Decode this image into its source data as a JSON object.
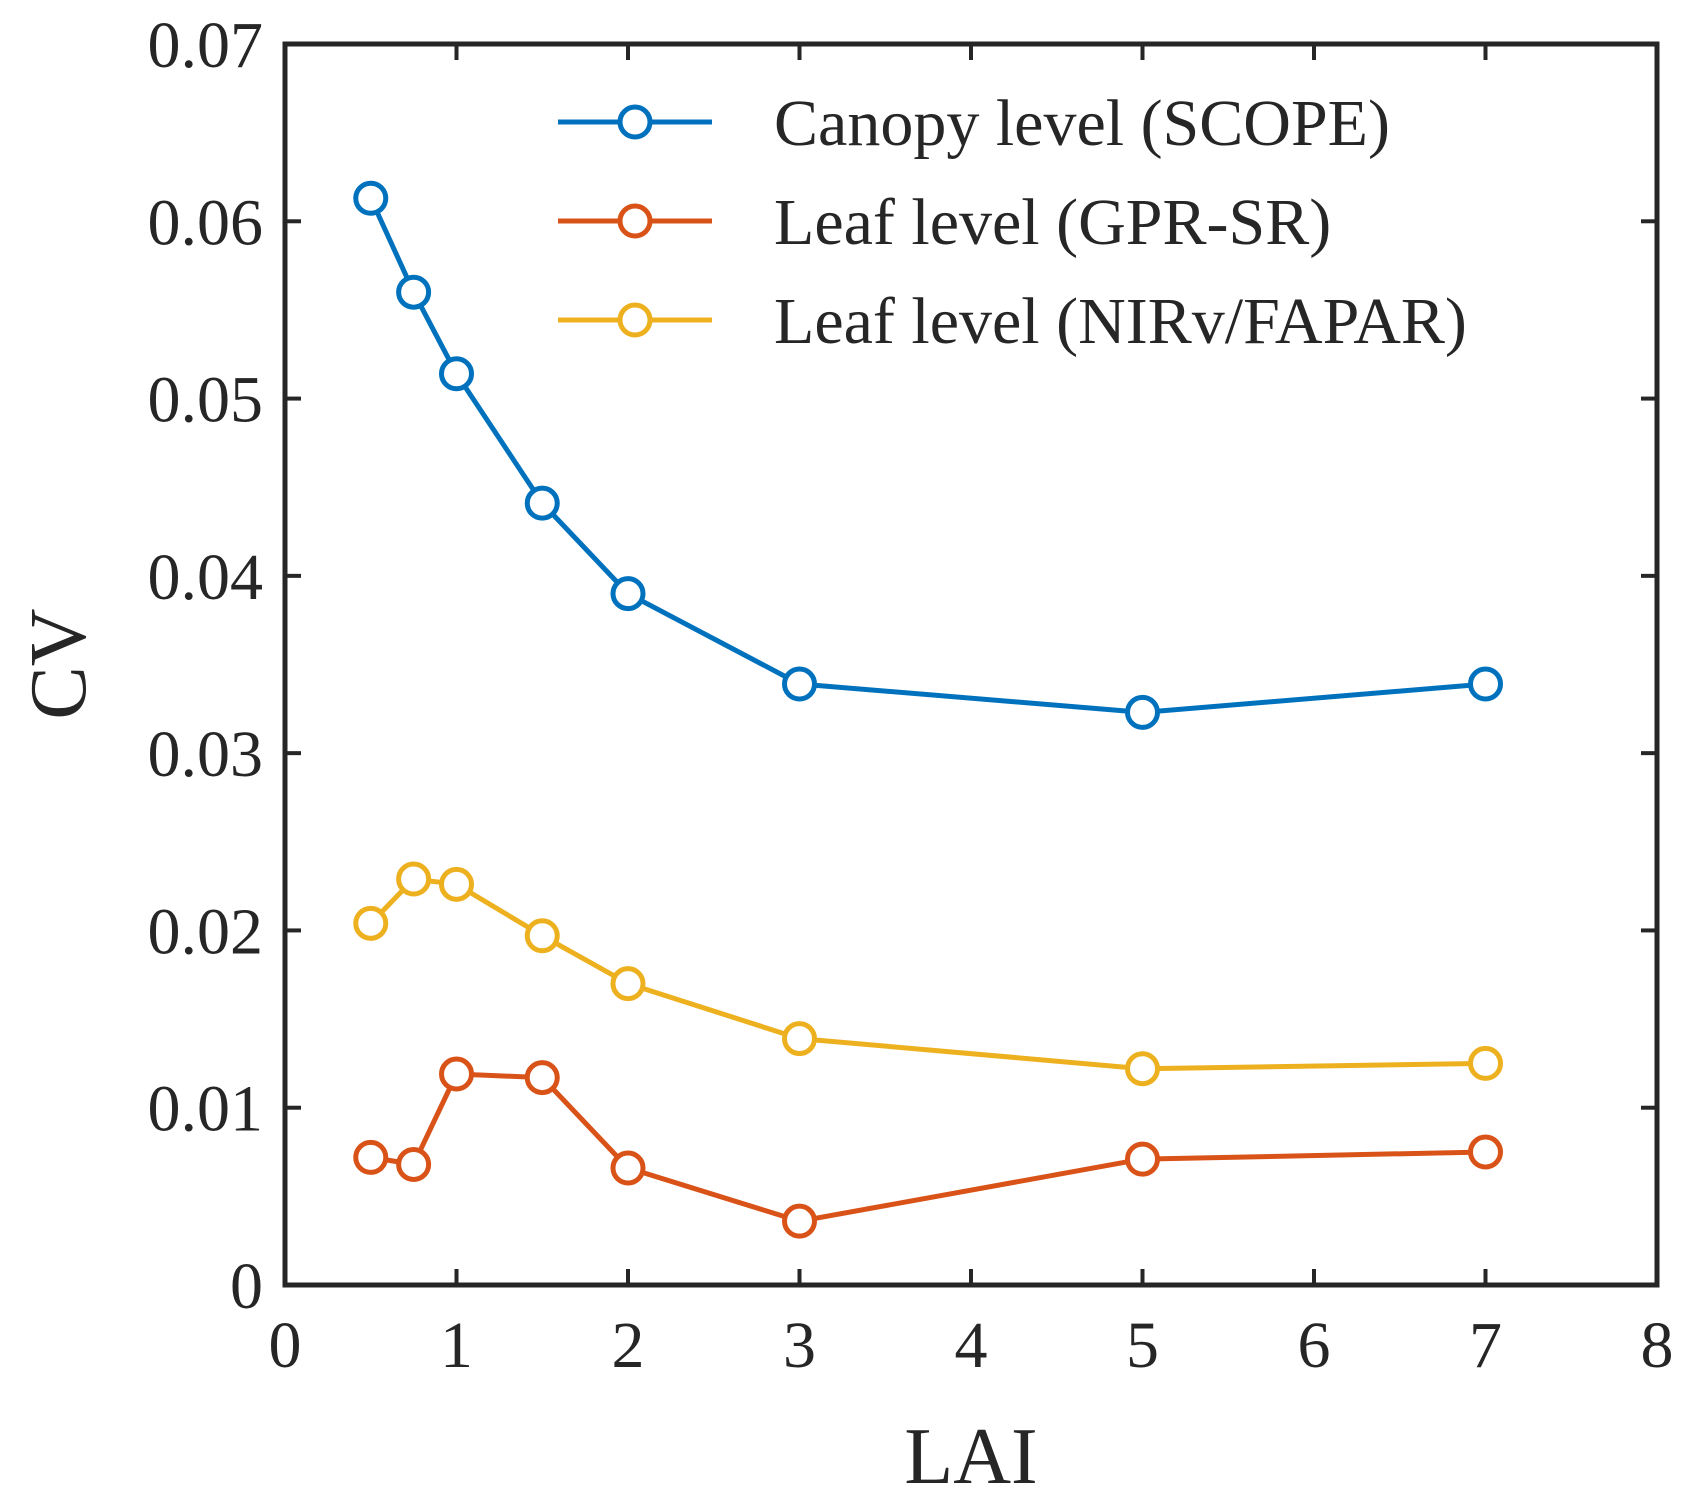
{
  "chart_data": {
    "type": "line",
    "title": "",
    "xlabel": "LAI",
    "ylabel": "CV",
    "xlim": [
      0,
      8
    ],
    "ylim": [
      0,
      0.07
    ],
    "x_ticks": [
      0,
      1,
      2,
      3,
      4,
      5,
      6,
      7,
      8
    ],
    "x_tick_labels": [
      "0",
      "1",
      "2",
      "3",
      "4",
      "5",
      "6",
      "7",
      "8"
    ],
    "y_ticks": [
      0,
      0.01,
      0.02,
      0.03,
      0.04,
      0.05,
      0.06,
      0.07
    ],
    "y_tick_labels": [
      "0",
      "0.01",
      "0.02",
      "0.03",
      "0.04",
      "0.05",
      "0.06",
      "0.07"
    ],
    "grid": false,
    "legend_position": "top-right",
    "x": [
      0.5,
      0.75,
      1,
      1.5,
      2,
      3,
      5,
      7
    ],
    "series": [
      {
        "name": "Canopy level (SCOPE)",
        "color": "#0072BD",
        "marker": "circle-open",
        "values": [
          0.0613,
          0.056,
          0.0514,
          0.0441,
          0.039,
          0.0339,
          0.0323,
          0.0339
        ]
      },
      {
        "name": "Leaf level (GPR-SR)",
        "color": "#D95319",
        "marker": "circle-open",
        "values": [
          0.0072,
          0.0068,
          0.0119,
          0.0117,
          0.0066,
          0.0036,
          0.0071,
          0.0075
        ]
      },
      {
        "name": "Leaf level (NIRv/FAPAR)",
        "color": "#EDB120",
        "marker": "circle-open",
        "values": [
          0.0204,
          0.0229,
          0.0226,
          0.0197,
          0.017,
          0.0139,
          0.0122,
          0.0125
        ]
      }
    ]
  }
}
